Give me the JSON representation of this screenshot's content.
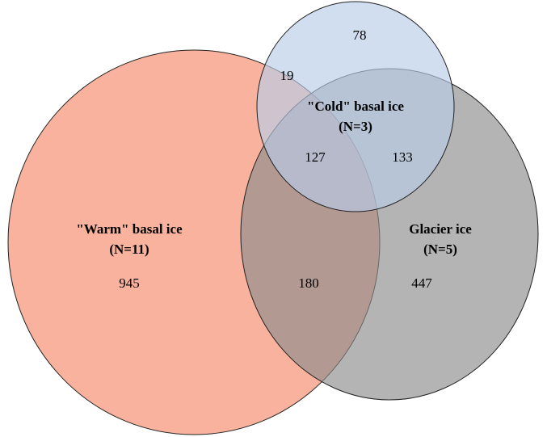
{
  "sets": [
    {
      "label": "\"Warm\" basal ice",
      "n": "(N=11)"
    },
    {
      "label": "\"Cold\" basal ice",
      "n": "(N=3)"
    },
    {
      "label": "Glacier ice",
      "n": "(N=5)"
    }
  ],
  "regions": [
    {
      "value": 945
    },
    {
      "value": 78
    },
    {
      "value": 447
    },
    {
      "value": 19
    },
    {
      "value": 127
    },
    {
      "value": 133
    },
    {
      "value": 180
    }
  ]
}
